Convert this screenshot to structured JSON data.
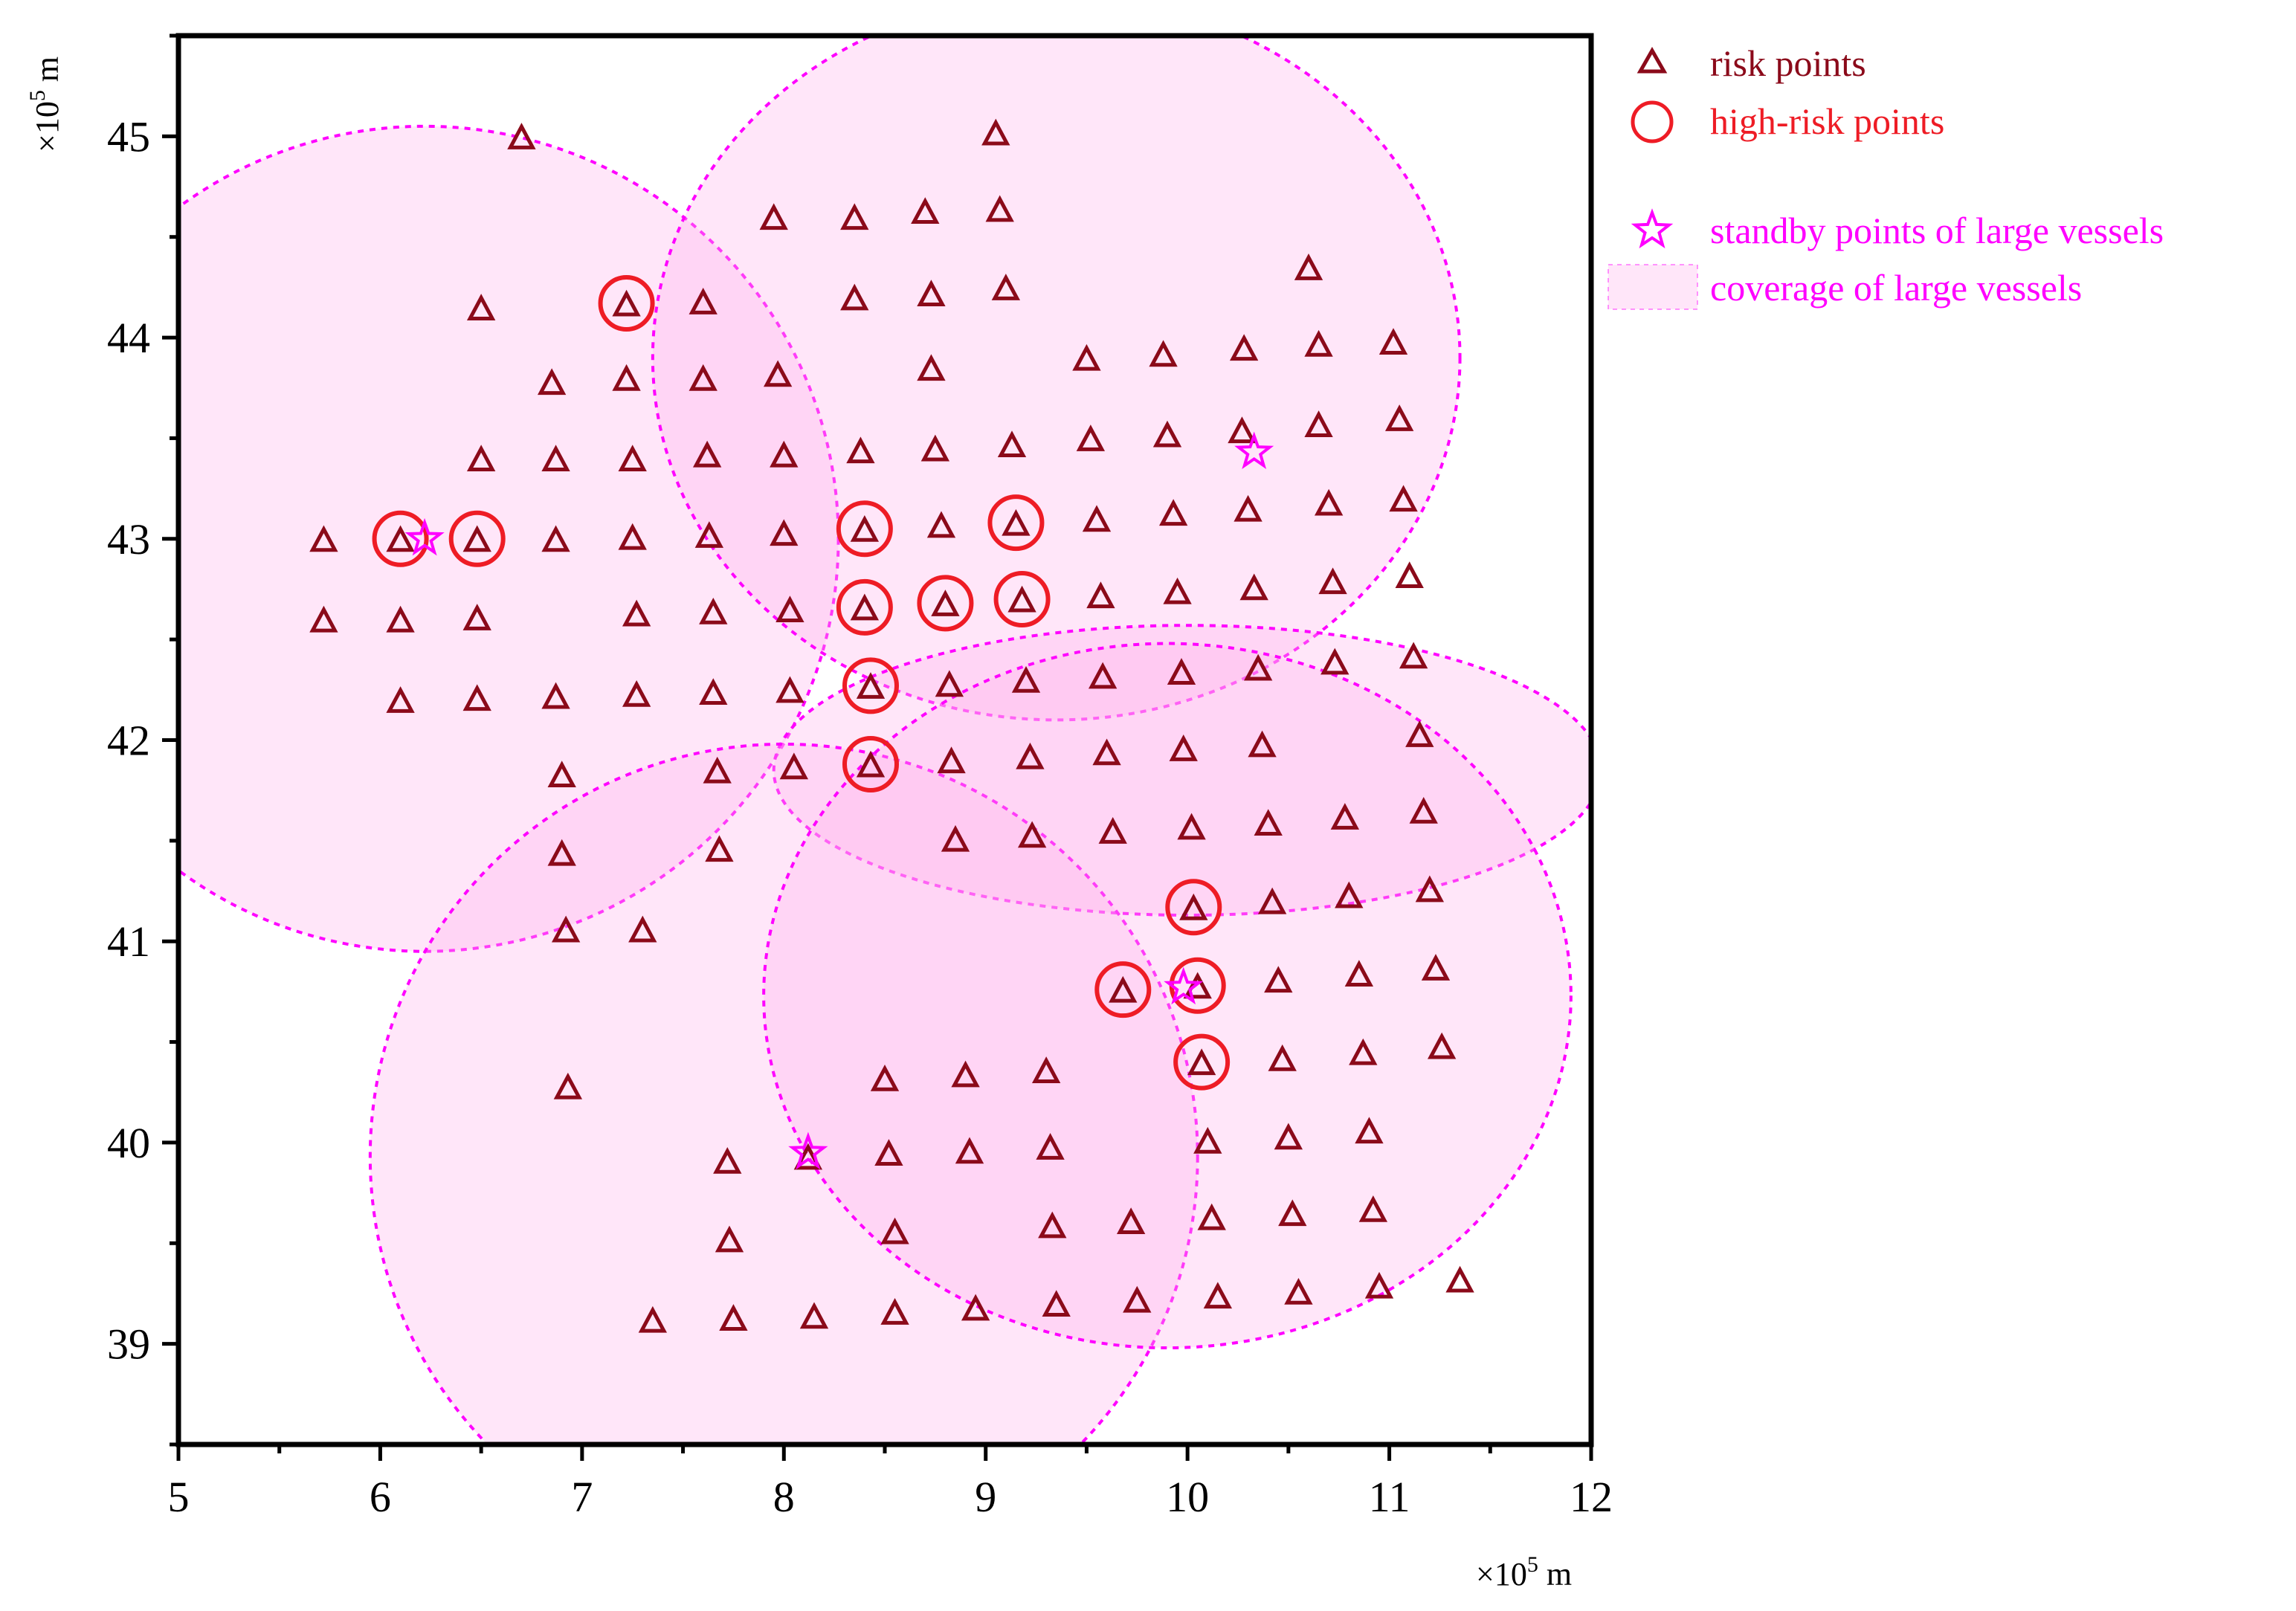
{
  "chart_data": {
    "type": "scatter",
    "title": "",
    "xlabel": "",
    "ylabel": "",
    "x_unit": {
      "prefix": "×10",
      "exp": "5",
      "suffix": " m"
    },
    "y_unit": {
      "prefix": "×10",
      "exp": "5",
      "suffix": " m"
    },
    "xlim": [
      5,
      12
    ],
    "ylim": [
      38.5,
      45.5
    ],
    "x_ticks": [
      5,
      6,
      7,
      8,
      9,
      10,
      11,
      12
    ],
    "y_ticks": [
      39,
      40,
      41,
      42,
      43,
      44,
      45
    ],
    "grid": false,
    "legend_position": "outside-right-top",
    "colors": {
      "risk": "#8b0a1a",
      "high_risk": "#ee1c25",
      "standby": "#ff00ff",
      "coverage_fill": "#ffb3ee",
      "coverage_stroke": "#ff00ff"
    },
    "legend": [
      {
        "key": "risk",
        "label": "risk points",
        "color": "#8b0a1a"
      },
      {
        "key": "high_risk",
        "label": "high-risk points",
        "color": "#ee1c25"
      },
      {
        "key": "standby",
        "label": "standby points of large vessels",
        "color": "#ff00ff"
      },
      {
        "key": "coverage",
        "label": "coverage of large vessels",
        "color": "#ff00ff"
      }
    ],
    "series": [
      {
        "name": "risk points",
        "marker": "triangle",
        "points": [
          [
            6.7,
            45.0
          ],
          [
            9.05,
            45.02
          ],
          [
            7.95,
            44.6
          ],
          [
            8.35,
            44.6
          ],
          [
            8.7,
            44.63
          ],
          [
            9.07,
            44.64
          ],
          [
            6.5,
            44.15
          ],
          [
            7.22,
            44.17
          ],
          [
            7.6,
            44.18
          ],
          [
            8.35,
            44.2
          ],
          [
            8.73,
            44.22
          ],
          [
            9.1,
            44.25
          ],
          [
            10.6,
            44.35
          ],
          [
            6.85,
            43.78
          ],
          [
            7.22,
            43.8
          ],
          [
            7.6,
            43.8
          ],
          [
            7.97,
            43.82
          ],
          [
            8.73,
            43.85
          ],
          [
            9.5,
            43.9
          ],
          [
            9.88,
            43.92
          ],
          [
            10.28,
            43.95
          ],
          [
            10.65,
            43.97
          ],
          [
            11.02,
            43.98
          ],
          [
            6.5,
            43.4
          ],
          [
            6.87,
            43.4
          ],
          [
            7.25,
            43.4
          ],
          [
            7.62,
            43.42
          ],
          [
            8.0,
            43.42
          ],
          [
            8.38,
            43.44
          ],
          [
            8.75,
            43.45
          ],
          [
            9.13,
            43.47
          ],
          [
            9.52,
            43.5
          ],
          [
            9.9,
            43.52
          ],
          [
            10.27,
            43.54
          ],
          [
            10.65,
            43.57
          ],
          [
            11.05,
            43.6
          ],
          [
            5.72,
            43.0
          ],
          [
            6.1,
            43.0
          ],
          [
            6.48,
            43.0
          ],
          [
            6.87,
            43.0
          ],
          [
            7.25,
            43.01
          ],
          [
            7.63,
            43.02
          ],
          [
            8.0,
            43.03
          ],
          [
            8.4,
            43.05
          ],
          [
            8.78,
            43.07
          ],
          [
            9.15,
            43.08
          ],
          [
            9.55,
            43.1
          ],
          [
            9.93,
            43.13
          ],
          [
            10.3,
            43.15
          ],
          [
            10.7,
            43.18
          ],
          [
            11.07,
            43.2
          ],
          [
            5.72,
            42.6
          ],
          [
            6.1,
            42.6
          ],
          [
            6.48,
            42.61
          ],
          [
            7.27,
            42.63
          ],
          [
            7.65,
            42.64
          ],
          [
            8.03,
            42.65
          ],
          [
            8.4,
            42.66
          ],
          [
            8.8,
            42.68
          ],
          [
            9.18,
            42.7
          ],
          [
            9.57,
            42.72
          ],
          [
            9.95,
            42.74
          ],
          [
            10.33,
            42.76
          ],
          [
            10.72,
            42.79
          ],
          [
            11.1,
            42.82
          ],
          [
            6.1,
            42.2
          ],
          [
            6.48,
            42.21
          ],
          [
            6.87,
            42.22
          ],
          [
            7.27,
            42.23
          ],
          [
            7.65,
            42.24
          ],
          [
            8.03,
            42.25
          ],
          [
            8.43,
            42.27
          ],
          [
            8.82,
            42.28
          ],
          [
            9.2,
            42.3
          ],
          [
            9.58,
            42.32
          ],
          [
            9.97,
            42.34
          ],
          [
            10.35,
            42.36
          ],
          [
            10.73,
            42.39
          ],
          [
            11.12,
            42.42
          ],
          [
            6.9,
            41.83
          ],
          [
            7.67,
            41.85
          ],
          [
            8.05,
            41.87
          ],
          [
            8.43,
            41.88
          ],
          [
            8.83,
            41.9
          ],
          [
            9.22,
            41.92
          ],
          [
            9.6,
            41.94
          ],
          [
            9.98,
            41.96
          ],
          [
            10.37,
            41.98
          ],
          [
            11.15,
            42.03
          ],
          [
            6.9,
            41.44
          ],
          [
            7.68,
            41.46
          ],
          [
            8.85,
            41.51
          ],
          [
            9.23,
            41.53
          ],
          [
            9.63,
            41.55
          ],
          [
            10.02,
            41.57
          ],
          [
            10.4,
            41.59
          ],
          [
            10.78,
            41.62
          ],
          [
            11.17,
            41.65
          ],
          [
            6.92,
            41.06
          ],
          [
            7.3,
            41.06
          ],
          [
            10.03,
            41.17
          ],
          [
            10.42,
            41.2
          ],
          [
            10.8,
            41.23
          ],
          [
            11.2,
            41.26
          ],
          [
            9.68,
            40.76
          ],
          [
            10.05,
            40.78
          ],
          [
            10.45,
            40.81
          ],
          [
            10.85,
            40.84
          ],
          [
            11.23,
            40.87
          ],
          [
            6.93,
            40.28
          ],
          [
            8.5,
            40.32
          ],
          [
            8.9,
            40.34
          ],
          [
            9.3,
            40.36
          ],
          [
            10.07,
            40.4
          ],
          [
            10.47,
            40.42
          ],
          [
            10.87,
            40.45
          ],
          [
            11.26,
            40.48
          ],
          [
            7.72,
            39.91
          ],
          [
            8.12,
            39.93
          ],
          [
            8.52,
            39.95
          ],
          [
            8.92,
            39.96
          ],
          [
            9.32,
            39.98
          ],
          [
            10.1,
            40.01
          ],
          [
            10.5,
            40.03
          ],
          [
            10.9,
            40.06
          ],
          [
            7.73,
            39.52
          ],
          [
            8.55,
            39.56
          ],
          [
            9.33,
            39.59
          ],
          [
            9.72,
            39.61
          ],
          [
            10.12,
            39.63
          ],
          [
            10.52,
            39.65
          ],
          [
            10.92,
            39.67
          ],
          [
            7.35,
            39.12
          ],
          [
            7.75,
            39.13
          ],
          [
            8.15,
            39.14
          ],
          [
            8.55,
            39.16
          ],
          [
            8.95,
            39.18
          ],
          [
            9.35,
            39.2
          ],
          [
            9.75,
            39.22
          ],
          [
            10.15,
            39.24
          ],
          [
            10.55,
            39.26
          ],
          [
            10.95,
            39.29
          ],
          [
            11.35,
            39.32
          ]
        ]
      },
      {
        "name": "high-risk points",
        "marker": "circle",
        "points": [
          [
            7.22,
            44.17
          ],
          [
            6.1,
            43.0
          ],
          [
            6.48,
            43.0
          ],
          [
            8.4,
            43.05
          ],
          [
            9.15,
            43.08
          ],
          [
            8.4,
            42.66
          ],
          [
            8.8,
            42.68
          ],
          [
            9.18,
            42.7
          ],
          [
            8.43,
            42.27
          ],
          [
            8.43,
            41.88
          ],
          [
            10.03,
            41.17
          ],
          [
            9.68,
            40.76
          ],
          [
            10.05,
            40.78
          ],
          [
            10.07,
            40.4
          ]
        ]
      },
      {
        "name": "standby points of large vessels",
        "marker": "star",
        "points": [
          [
            6.22,
            43.0
          ],
          [
            10.33,
            43.43
          ],
          [
            9.98,
            40.77
          ],
          [
            8.12,
            39.95
          ]
        ]
      },
      {
        "name": "coverage of large vessels",
        "marker": "ellipse",
        "regions": [
          {
            "cx": 6.22,
            "cy": 43.0,
            "rx": 2.05,
            "ry": 2.05
          },
          {
            "cx": 9.35,
            "cy": 43.9,
            "rx": 2.0,
            "ry": 1.8
          },
          {
            "cx": 10.0,
            "cy": 41.85,
            "rx": 2.05,
            "ry": 0.72
          },
          {
            "cx": 8.0,
            "cy": 39.93,
            "rx": 2.05,
            "ry": 2.05
          },
          {
            "cx": 9.9,
            "cy": 40.73,
            "rx": 2.0,
            "ry": 1.75
          }
        ]
      }
    ]
  }
}
